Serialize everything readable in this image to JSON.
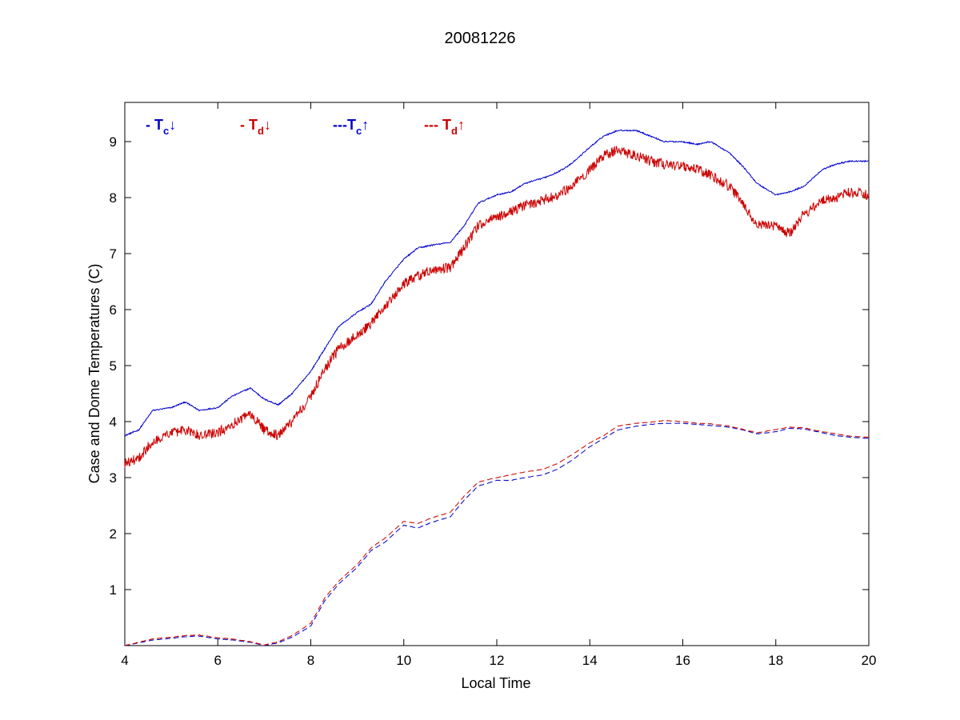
{
  "chart_data": {
    "type": "line",
    "title": "20081226",
    "xlabel": "Local Time",
    "ylabel": "Case and Dome Temperatures (C)",
    "xlim": [
      4,
      20
    ],
    "ylim": [
      0,
      9.7
    ],
    "x_ticks": [
      4,
      6,
      8,
      10,
      12,
      14,
      16,
      18,
      20
    ],
    "y_ticks": [
      1,
      2,
      3,
      4,
      5,
      6,
      7,
      8,
      9
    ],
    "grid": false,
    "legend_placement": "top-left",
    "series": [
      {
        "name": "- Tc↓",
        "label_main": "- T",
        "label_sub": "c",
        "label_arrow": "↓",
        "color": "#0000cc",
        "dash": "solid",
        "noise": 0.012,
        "x": [
          4.0,
          4.3,
          4.6,
          5.0,
          5.3,
          5.6,
          6.0,
          6.3,
          6.7,
          7.0,
          7.3,
          7.6,
          8.0,
          8.3,
          8.6,
          9.0,
          9.3,
          9.6,
          10.0,
          10.3,
          10.6,
          11.0,
          11.3,
          11.6,
          12.0,
          12.3,
          12.6,
          13.0,
          13.3,
          13.6,
          14.0,
          14.3,
          14.6,
          15.0,
          15.3,
          15.6,
          16.0,
          16.3,
          16.6,
          17.0,
          17.3,
          17.6,
          18.0,
          18.3,
          18.6,
          19.0,
          19.3,
          19.6,
          20.0
        ],
        "y": [
          3.75,
          3.85,
          4.2,
          4.25,
          4.35,
          4.2,
          4.25,
          4.45,
          4.6,
          4.4,
          4.3,
          4.5,
          4.9,
          5.3,
          5.7,
          5.95,
          6.1,
          6.5,
          6.9,
          7.1,
          7.15,
          7.2,
          7.5,
          7.9,
          8.05,
          8.1,
          8.25,
          8.35,
          8.45,
          8.6,
          8.9,
          9.1,
          9.2,
          9.2,
          9.1,
          9.0,
          9.0,
          8.95,
          9.0,
          8.8,
          8.55,
          8.25,
          8.05,
          8.1,
          8.2,
          8.5,
          8.6,
          8.65,
          8.65
        ]
      },
      {
        "name": "- Td↓",
        "label_main": "- T",
        "label_sub": "d",
        "label_arrow": "↓",
        "color": "#cc0000",
        "dash": "solid",
        "noise": 0.09,
        "x": [
          4.0,
          4.3,
          4.6,
          5.0,
          5.3,
          5.6,
          6.0,
          6.3,
          6.7,
          7.0,
          7.3,
          7.6,
          8.0,
          8.3,
          8.6,
          9.0,
          9.3,
          9.6,
          10.0,
          10.3,
          10.6,
          11.0,
          11.3,
          11.6,
          12.0,
          12.3,
          12.6,
          13.0,
          13.3,
          13.6,
          14.0,
          14.3,
          14.6,
          15.0,
          15.3,
          15.6,
          16.0,
          16.3,
          16.6,
          17.0,
          17.3,
          17.6,
          18.0,
          18.3,
          18.6,
          19.0,
          19.3,
          19.6,
          20.0
        ],
        "y": [
          3.25,
          3.35,
          3.65,
          3.8,
          3.85,
          3.75,
          3.8,
          3.95,
          4.15,
          3.85,
          3.75,
          4.0,
          4.45,
          4.95,
          5.3,
          5.55,
          5.75,
          6.05,
          6.45,
          6.6,
          6.7,
          6.75,
          7.1,
          7.5,
          7.65,
          7.75,
          7.85,
          7.95,
          8.05,
          8.2,
          8.5,
          8.75,
          8.85,
          8.75,
          8.65,
          8.6,
          8.55,
          8.5,
          8.4,
          8.2,
          7.9,
          7.5,
          7.5,
          7.35,
          7.7,
          7.95,
          8.0,
          8.1,
          8.05
        ]
      },
      {
        "name": "---Tc↑",
        "label_main": "---T",
        "label_sub": "c",
        "label_arrow": "↑",
        "color": "#0000cc",
        "dash": "dashed",
        "noise": 0.004,
        "x": [
          4.0,
          4.3,
          4.6,
          5.0,
          5.3,
          5.6,
          6.0,
          6.3,
          6.7,
          7.0,
          7.3,
          7.6,
          8.0,
          8.3,
          8.6,
          9.0,
          9.3,
          9.6,
          10.0,
          10.3,
          10.6,
          11.0,
          11.3,
          11.6,
          12.0,
          12.3,
          12.6,
          13.0,
          13.3,
          13.6,
          14.0,
          14.3,
          14.6,
          15.0,
          15.3,
          15.6,
          16.0,
          16.3,
          16.6,
          17.0,
          17.3,
          17.6,
          18.0,
          18.3,
          18.6,
          19.0,
          19.3,
          19.6,
          20.0
        ],
        "y": [
          0.0,
          0.05,
          0.1,
          0.13,
          0.16,
          0.17,
          0.12,
          0.1,
          0.06,
          0.0,
          0.05,
          0.15,
          0.35,
          0.8,
          1.1,
          1.4,
          1.7,
          1.85,
          2.15,
          2.1,
          2.2,
          2.3,
          2.6,
          2.85,
          2.95,
          2.95,
          3.0,
          3.05,
          3.15,
          3.3,
          3.55,
          3.7,
          3.85,
          3.92,
          3.95,
          3.97,
          3.97,
          3.95,
          3.93,
          3.9,
          3.85,
          3.78,
          3.82,
          3.88,
          3.87,
          3.8,
          3.75,
          3.72,
          3.7
        ]
      },
      {
        "name": "--- Td↑",
        "label_main": "--- T",
        "label_sub": "d",
        "label_arrow": "↑",
        "color": "#cc0000",
        "dash": "dashed",
        "noise": 0.004,
        "x": [
          4.0,
          4.3,
          4.6,
          5.0,
          5.3,
          5.6,
          6.0,
          6.3,
          6.7,
          7.0,
          7.3,
          7.6,
          8.0,
          8.3,
          8.6,
          9.0,
          9.3,
          9.6,
          10.0,
          10.3,
          10.6,
          11.0,
          11.3,
          11.6,
          12.0,
          12.3,
          12.6,
          13.0,
          13.3,
          13.6,
          14.0,
          14.3,
          14.6,
          15.0,
          15.3,
          15.6,
          16.0,
          16.3,
          16.6,
          17.0,
          17.3,
          17.6,
          18.0,
          18.3,
          18.6,
          19.0,
          19.3,
          19.6,
          20.0
        ],
        "y": [
          0.0,
          0.06,
          0.12,
          0.15,
          0.18,
          0.19,
          0.14,
          0.12,
          0.07,
          0.01,
          0.07,
          0.18,
          0.4,
          0.85,
          1.15,
          1.45,
          1.75,
          1.92,
          2.22,
          2.18,
          2.28,
          2.38,
          2.67,
          2.92,
          3.0,
          3.05,
          3.1,
          3.15,
          3.25,
          3.4,
          3.62,
          3.75,
          3.92,
          3.97,
          3.99,
          4.02,
          4.0,
          3.97,
          3.96,
          3.92,
          3.86,
          3.8,
          3.86,
          3.9,
          3.89,
          3.82,
          3.78,
          3.74,
          3.72
        ]
      }
    ]
  }
}
